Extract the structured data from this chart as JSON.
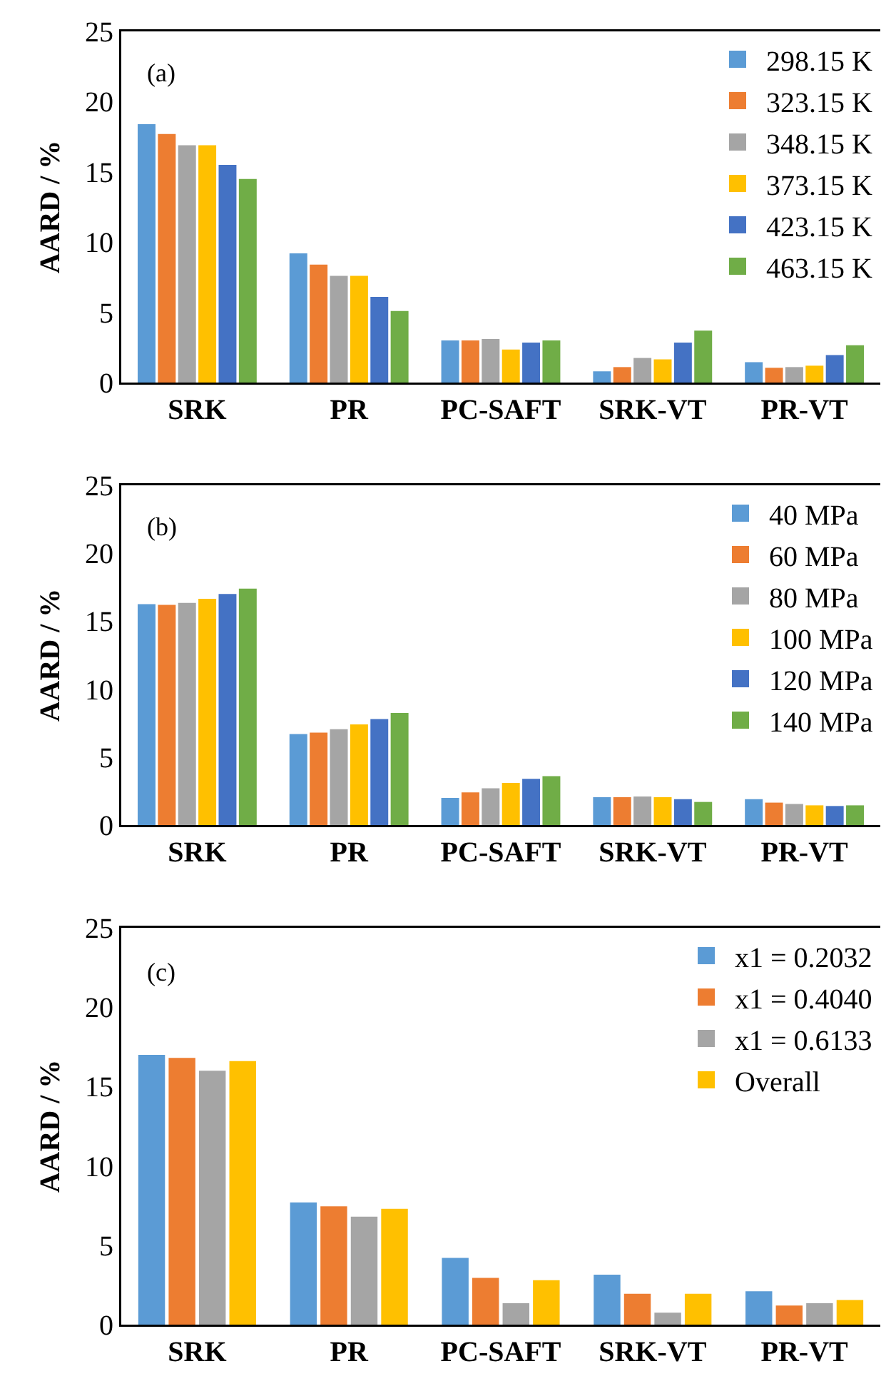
{
  "chart_data": [
    {
      "type": "bar",
      "annotations": [
        "(a)"
      ],
      "ylabel": "AARD / %",
      "categories": [
        "SRK",
        "PR",
        "PC-SAFT",
        "SRK-VT",
        "PR-VT"
      ],
      "ylim": [
        0,
        25
      ],
      "yticks": [
        0,
        5,
        10,
        15,
        20,
        25
      ],
      "grid": false,
      "legend": "top right",
      "series": [
        {
          "name": "298.15 K",
          "color": "#5b9bd5",
          "values": [
            18.4,
            9.2,
            3.0,
            0.8,
            1.45
          ]
        },
        {
          "name": "323.15 K",
          "color": "#ed7d31",
          "values": [
            17.7,
            8.4,
            3.0,
            1.1,
            1.05
          ]
        },
        {
          "name": "348.15 K",
          "color": "#a5a5a5",
          "values": [
            16.9,
            7.6,
            3.1,
            1.75,
            1.1
          ]
        },
        {
          "name": "373.15 K",
          "color": "#ffc000",
          "values": [
            16.9,
            7.6,
            2.35,
            1.65,
            1.2
          ]
        },
        {
          "name": "423.15 K",
          "color": "#4472c4",
          "values": [
            15.5,
            6.1,
            2.85,
            2.85,
            1.95
          ]
        },
        {
          "name": "463.15 K",
          "color": "#70ad47",
          "values": [
            14.5,
            5.1,
            3.0,
            3.7,
            2.65
          ]
        }
      ]
    },
    {
      "type": "bar",
      "annotations": [
        "(b)"
      ],
      "ylabel": "AARD / %",
      "categories": [
        "SRK",
        "PR",
        "PC-SAFT",
        "SRK-VT",
        "PR-VT"
      ],
      "ylim": [
        0,
        25
      ],
      "yticks": [
        0,
        5,
        10,
        15,
        20,
        25
      ],
      "grid": false,
      "legend": "top right",
      "series": [
        {
          "name": "40 MPa",
          "color": "#5b9bd5",
          "values": [
            16.25,
            6.7,
            2.0,
            2.05,
            1.9
          ]
        },
        {
          "name": "60 MPa",
          "color": "#ed7d31",
          "values": [
            16.2,
            6.8,
            2.4,
            2.05,
            1.65
          ]
        },
        {
          "name": "80 MPa",
          "color": "#a5a5a5",
          "values": [
            16.35,
            7.05,
            2.7,
            2.1,
            1.55
          ]
        },
        {
          "name": "100 MPa",
          "color": "#ffc000",
          "values": [
            16.65,
            7.4,
            3.1,
            2.05,
            1.45
          ]
        },
        {
          "name": "120 MPa",
          "color": "#4472c4",
          "values": [
            17.0,
            7.8,
            3.4,
            1.9,
            1.4
          ]
        },
        {
          "name": "140 MPa",
          "color": "#70ad47",
          "values": [
            17.4,
            8.25,
            3.6,
            1.7,
            1.45
          ]
        }
      ]
    },
    {
      "type": "bar",
      "annotations": [
        "(c)"
      ],
      "ylabel": "AARD / %",
      "categories": [
        "SRK",
        "PR",
        "PC-SAFT",
        "SRK-VT",
        "PR-VT"
      ],
      "ylim": [
        0,
        25
      ],
      "yticks": [
        0,
        5,
        10,
        15,
        20,
        25
      ],
      "grid": false,
      "legend": "top right",
      "series": [
        {
          "name": "x1 = 0.2032",
          "color": "#5b9bd5",
          "values": [
            17.0,
            7.7,
            4.2,
            3.15,
            2.1
          ]
        },
        {
          "name": "x1 = 0.4040",
          "color": "#ed7d31",
          "values": [
            16.8,
            7.45,
            2.95,
            1.95,
            1.2
          ]
        },
        {
          "name": "x1 = 0.6133",
          "color": "#a5a5a5",
          "values": [
            16.0,
            6.8,
            1.35,
            0.75,
            1.35
          ]
        },
        {
          "name": "Overall",
          "color": "#ffc000",
          "values": [
            16.6,
            7.3,
            2.8,
            1.95,
            1.55
          ]
        }
      ]
    }
  ]
}
